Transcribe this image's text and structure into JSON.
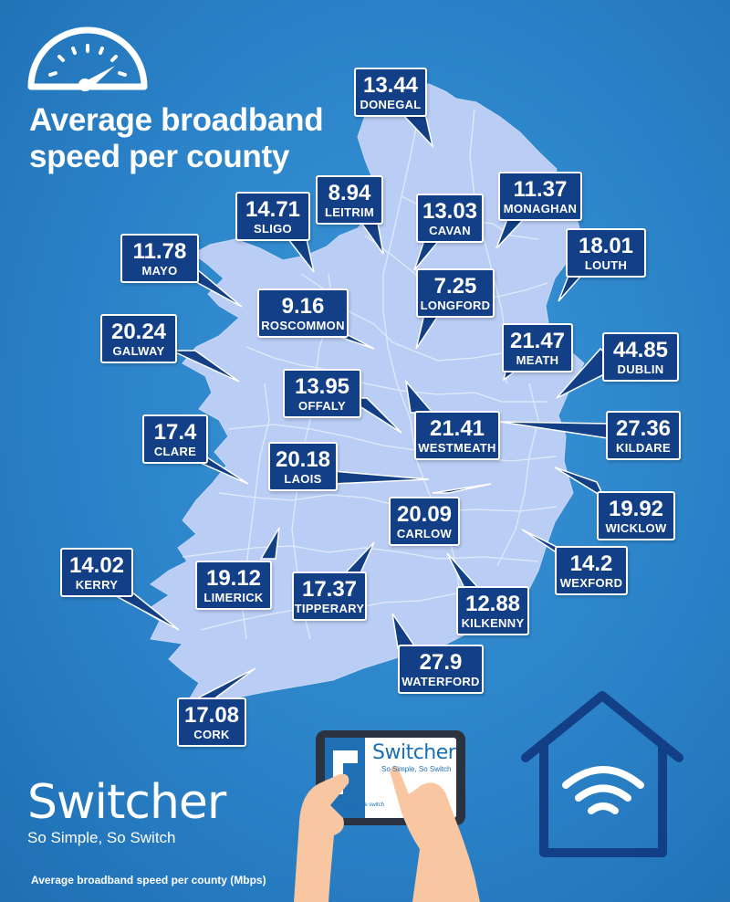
{
  "title": "Average broadband speed per county",
  "footer_note": "Average broadband speed per county (Mbps)",
  "brand": {
    "name": "Switcher",
    "tagline": "So Simple, So Switch"
  },
  "tablet": {
    "brand": "Switcher",
    "tagline": "So Simple, So Switch",
    "cta": "Make the switch"
  },
  "icons": [
    "speedometer-icon",
    "house-wifi-icon",
    "hand-tablet-illustration"
  ],
  "colors": {
    "background": "#2b82c8",
    "land": "#b9cdf5",
    "callout": "#123f85",
    "text": "#ffffff"
  },
  "counties": [
    {
      "name": "DONEGAL",
      "value": "13.44"
    },
    {
      "name": "LEITRIM",
      "value": "8.94"
    },
    {
      "name": "SLIGO",
      "value": "14.71"
    },
    {
      "name": "CAVAN",
      "value": "13.03"
    },
    {
      "name": "MONAGHAN",
      "value": "11.37"
    },
    {
      "name": "MAYO",
      "value": "11.78"
    },
    {
      "name": "LOUTH",
      "value": "18.01"
    },
    {
      "name": "ROSCOMMON",
      "value": "9.16"
    },
    {
      "name": "LONGFORD",
      "value": "7.25"
    },
    {
      "name": "GALWAY",
      "value": "20.24"
    },
    {
      "name": "MEATH",
      "value": "21.47"
    },
    {
      "name": "DUBLIN",
      "value": "44.85"
    },
    {
      "name": "OFFALY",
      "value": "13.95"
    },
    {
      "name": "CLARE",
      "value": "17.4"
    },
    {
      "name": "WESTMEATH",
      "value": "21.41"
    },
    {
      "name": "KILDARE",
      "value": "27.36"
    },
    {
      "name": "LAOIS",
      "value": "20.18"
    },
    {
      "name": "CARLOW",
      "value": "20.09"
    },
    {
      "name": "WICKLOW",
      "value": "19.92"
    },
    {
      "name": "KERRY",
      "value": "14.02"
    },
    {
      "name": "LIMERICK",
      "value": "19.12"
    },
    {
      "name": "TIPPERARY",
      "value": "17.37"
    },
    {
      "name": "WEXFORD",
      "value": "14.2"
    },
    {
      "name": "KILKENNY",
      "value": "12.88"
    },
    {
      "name": "WATERFORD",
      "value": "27.9"
    },
    {
      "name": "CORK",
      "value": "17.08"
    }
  ]
}
